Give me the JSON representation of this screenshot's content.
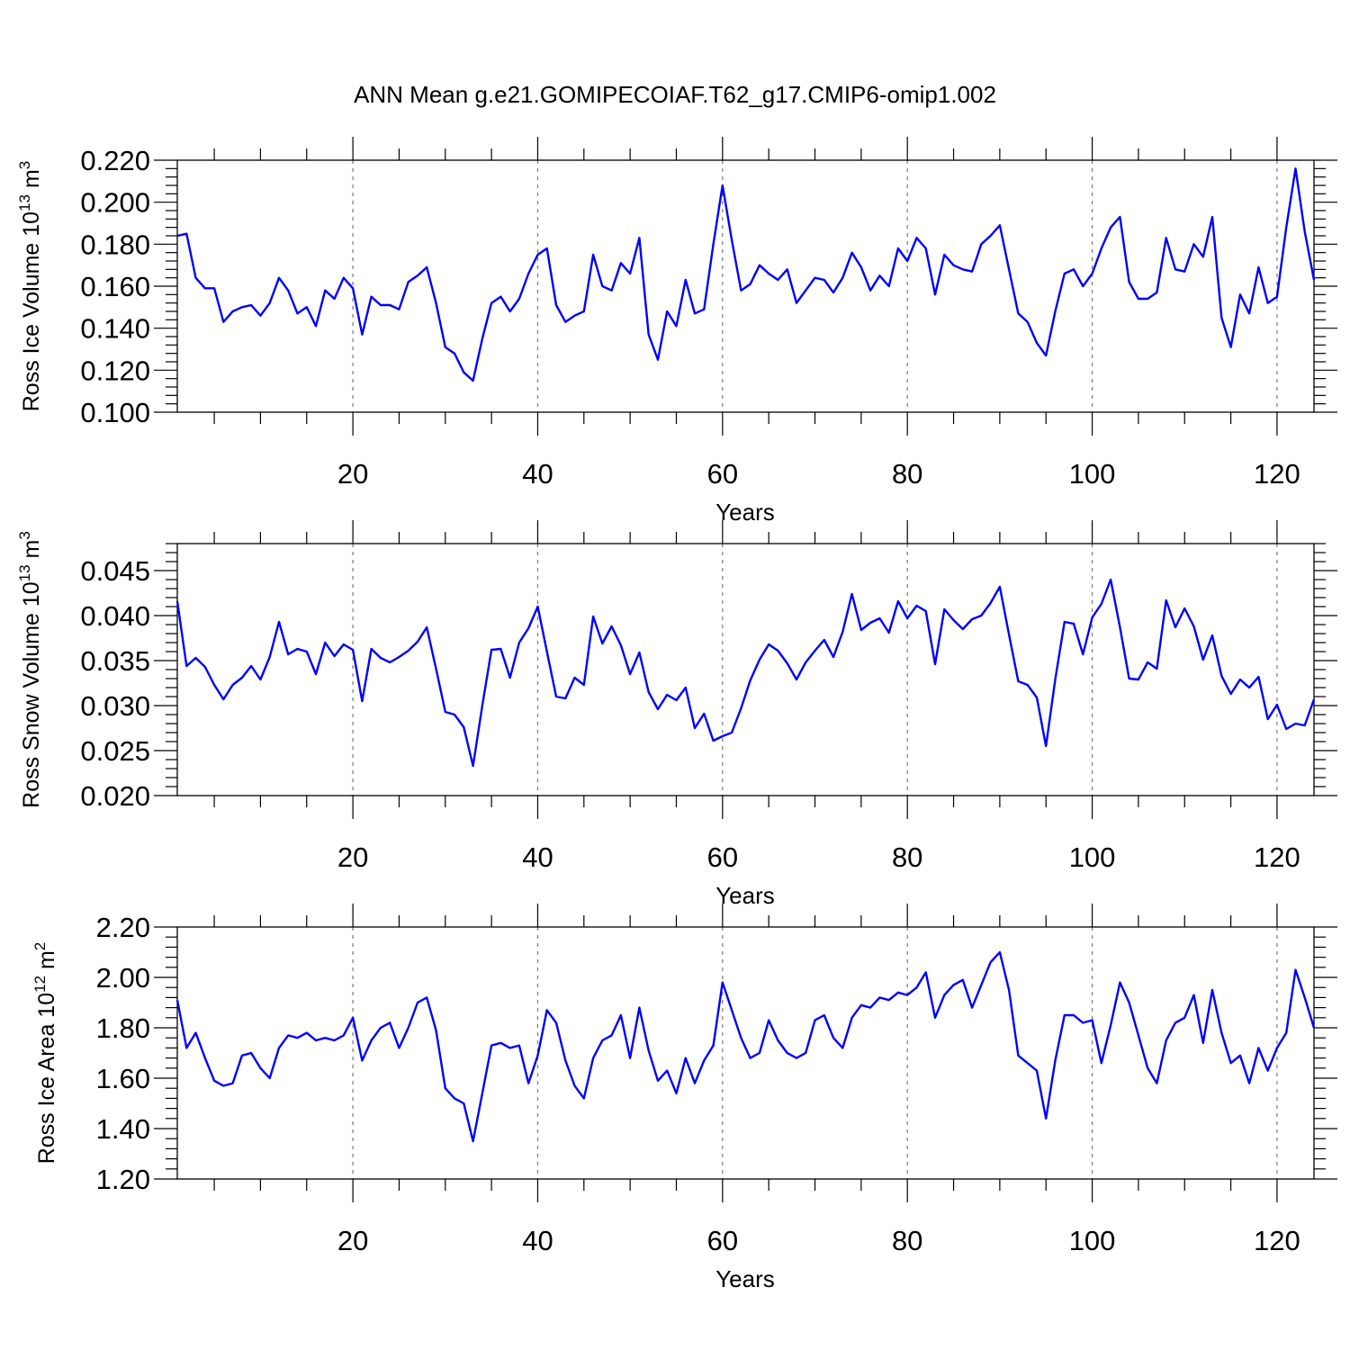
{
  "title": "ANN Mean g.e21.GOMIPECOIAF.T62_g17.CMIP6-omip1.002",
  "colors": {
    "series": "#0000ff",
    "grid": "#777777"
  },
  "chart_data": [
    {
      "type": "line",
      "ylabel": {
        "text": "Ross Ice Volume 10",
        "sup1": "13",
        "unit": " m",
        "sup2": "3"
      },
      "xlabel": "Years",
      "xlim": [
        1,
        124
      ],
      "ylim": [
        0.1,
        0.22
      ],
      "yticks": [
        0.1,
        0.12,
        0.14,
        0.16,
        0.18,
        0.2,
        0.22
      ],
      "ytick_labels": [
        "0.100",
        "0.120",
        "0.140",
        "0.160",
        "0.180",
        "0.200",
        "0.220"
      ],
      "xticks": [
        20,
        40,
        60,
        80,
        100,
        120
      ],
      "xtick_labels": [
        "20",
        "40",
        "60",
        "80",
        "100",
        "120"
      ],
      "grid": "vertical dashed at major x ticks",
      "x_start": 1,
      "series": [
        {
          "values": [
            0.184,
            0.185,
            0.164,
            0.159,
            0.159,
            0.143,
            0.148,
            0.15,
            0.151,
            0.146,
            0.152,
            0.164,
            0.158,
            0.147,
            0.15,
            0.141,
            0.158,
            0.154,
            0.164,
            0.159,
            0.137,
            0.155,
            0.151,
            0.151,
            0.149,
            0.162,
            0.165,
            0.169,
            0.152,
            0.131,
            0.128,
            0.119,
            0.115,
            0.135,
            0.152,
            0.155,
            0.148,
            0.154,
            0.166,
            0.175,
            0.178,
            0.151,
            0.143,
            0.146,
            0.148,
            0.175,
            0.16,
            0.158,
            0.171,
            0.166,
            0.183,
            0.137,
            0.125,
            0.148,
            0.141,
            0.163,
            0.147,
            0.149,
            0.18,
            0.208,
            0.182,
            0.158,
            0.161,
            0.17,
            0.166,
            0.163,
            0.168,
            0.152,
            0.158,
            0.164,
            0.163,
            0.157,
            0.164,
            0.176,
            0.169,
            0.158,
            0.165,
            0.16,
            0.178,
            0.172,
            0.183,
            0.178,
            0.156,
            0.175,
            0.17,
            0.168,
            0.167,
            0.18,
            0.184,
            0.189,
            0.168,
            0.147,
            0.143,
            0.133,
            0.127,
            0.148,
            0.166,
            0.168,
            0.16,
            0.166,
            0.178,
            0.188,
            0.193,
            0.162,
            0.154,
            0.154,
            0.157,
            0.183,
            0.168,
            0.167,
            0.18,
            0.174,
            0.193,
            0.145,
            0.131,
            0.156,
            0.147,
            0.169,
            0.152,
            0.155,
            0.188,
            0.216,
            0.186,
            0.163
          ]
        }
      ]
    },
    {
      "type": "line",
      "ylabel": {
        "text": "Ross Snow Volume 10",
        "sup1": "13",
        "unit": " m",
        "sup2": "3"
      },
      "xlabel": "Years",
      "xlim": [
        1,
        124
      ],
      "ylim": [
        0.02,
        0.048
      ],
      "yticks": [
        0.02,
        0.025,
        0.03,
        0.035,
        0.04,
        0.045
      ],
      "ytick_labels": [
        "0.020",
        "0.025",
        "0.030",
        "0.035",
        "0.040",
        "0.045"
      ],
      "xticks": [
        20,
        40,
        60,
        80,
        100,
        120
      ],
      "xtick_labels": [
        "20",
        "40",
        "60",
        "80",
        "100",
        "120"
      ],
      "grid": "vertical dashed at major x ticks",
      "x_start": 1,
      "series": [
        {
          "values": [
            0.0416,
            0.0344,
            0.0353,
            0.0343,
            0.0323,
            0.0307,
            0.0323,
            0.0331,
            0.0344,
            0.0329,
            0.0354,
            0.0393,
            0.0357,
            0.0363,
            0.036,
            0.0335,
            0.037,
            0.0355,
            0.0368,
            0.0362,
            0.0305,
            0.0363,
            0.0353,
            0.0348,
            0.0354,
            0.0361,
            0.0371,
            0.0387,
            0.0341,
            0.0293,
            0.029,
            0.0276,
            0.0233,
            0.03,
            0.0362,
            0.0363,
            0.0331,
            0.037,
            0.0386,
            0.041,
            0.036,
            0.031,
            0.0308,
            0.0331,
            0.0323,
            0.0399,
            0.0369,
            0.0388,
            0.0367,
            0.0335,
            0.0359,
            0.0315,
            0.0296,
            0.0312,
            0.0306,
            0.032,
            0.0275,
            0.0291,
            0.0261,
            0.0266,
            0.027,
            0.0297,
            0.0328,
            0.0351,
            0.0368,
            0.0361,
            0.0347,
            0.0329,
            0.0348,
            0.0361,
            0.0373,
            0.0354,
            0.0382,
            0.0424,
            0.0384,
            0.0392,
            0.0397,
            0.0381,
            0.0416,
            0.0397,
            0.0411,
            0.0405,
            0.0346,
            0.0407,
            0.0395,
            0.0385,
            0.0396,
            0.04,
            0.0414,
            0.0432,
            0.0379,
            0.0327,
            0.0323,
            0.0309,
            0.0255,
            0.0329,
            0.0393,
            0.0391,
            0.0357,
            0.0398,
            0.0413,
            0.044,
            0.0387,
            0.033,
            0.0329,
            0.0348,
            0.0341,
            0.0417,
            0.0387,
            0.0408,
            0.0388,
            0.0351,
            0.0378,
            0.0333,
            0.0313,
            0.0329,
            0.032,
            0.0332,
            0.0285,
            0.0301,
            0.0274,
            0.028,
            0.0278,
            0.0307
          ]
        }
      ]
    },
    {
      "type": "line",
      "ylabel": {
        "text": "Ross Ice Area 10",
        "sup1": "12",
        "unit": " m",
        "sup2": "2"
      },
      "xlabel": "Years",
      "xlim": [
        1,
        124
      ],
      "ylim": [
        1.2,
        2.2
      ],
      "yticks": [
        1.2,
        1.4,
        1.6,
        1.8,
        2.0,
        2.2
      ],
      "ytick_labels": [
        "1.20",
        "1.40",
        "1.60",
        "1.80",
        "2.00",
        "2.20"
      ],
      "xticks": [
        20,
        40,
        60,
        80,
        100,
        120
      ],
      "xtick_labels": [
        "20",
        "40",
        "60",
        "80",
        "100",
        "120"
      ],
      "grid": "vertical dashed at major x ticks",
      "x_start": 1,
      "series": [
        {
          "values": [
            1.91,
            1.72,
            1.78,
            1.68,
            1.59,
            1.57,
            1.58,
            1.69,
            1.7,
            1.64,
            1.6,
            1.72,
            1.77,
            1.76,
            1.78,
            1.75,
            1.76,
            1.75,
            1.77,
            1.84,
            1.67,
            1.75,
            1.8,
            1.82,
            1.72,
            1.8,
            1.9,
            1.92,
            1.79,
            1.56,
            1.52,
            1.5,
            1.35,
            1.54,
            1.73,
            1.74,
            1.72,
            1.73,
            1.58,
            1.69,
            1.87,
            1.82,
            1.67,
            1.57,
            1.52,
            1.68,
            1.75,
            1.77,
            1.85,
            1.68,
            1.88,
            1.71,
            1.59,
            1.63,
            1.54,
            1.68,
            1.58,
            1.67,
            1.73,
            1.98,
            1.87,
            1.76,
            1.68,
            1.7,
            1.83,
            1.75,
            1.7,
            1.68,
            1.7,
            1.83,
            1.85,
            1.76,
            1.72,
            1.84,
            1.89,
            1.88,
            1.92,
            1.91,
            1.94,
            1.93,
            1.96,
            2.02,
            1.84,
            1.93,
            1.97,
            1.99,
            1.88,
            1.97,
            2.06,
            2.1,
            1.95,
            1.69,
            1.66,
            1.63,
            1.44,
            1.67,
            1.85,
            1.85,
            1.82,
            1.83,
            1.66,
            1.81,
            1.98,
            1.9,
            1.77,
            1.64,
            1.58,
            1.75,
            1.82,
            1.84,
            1.93,
            1.74,
            1.95,
            1.78,
            1.66,
            1.69,
            1.58,
            1.72,
            1.63,
            1.72,
            1.78,
            2.03,
            1.92,
            1.8
          ]
        }
      ]
    }
  ]
}
